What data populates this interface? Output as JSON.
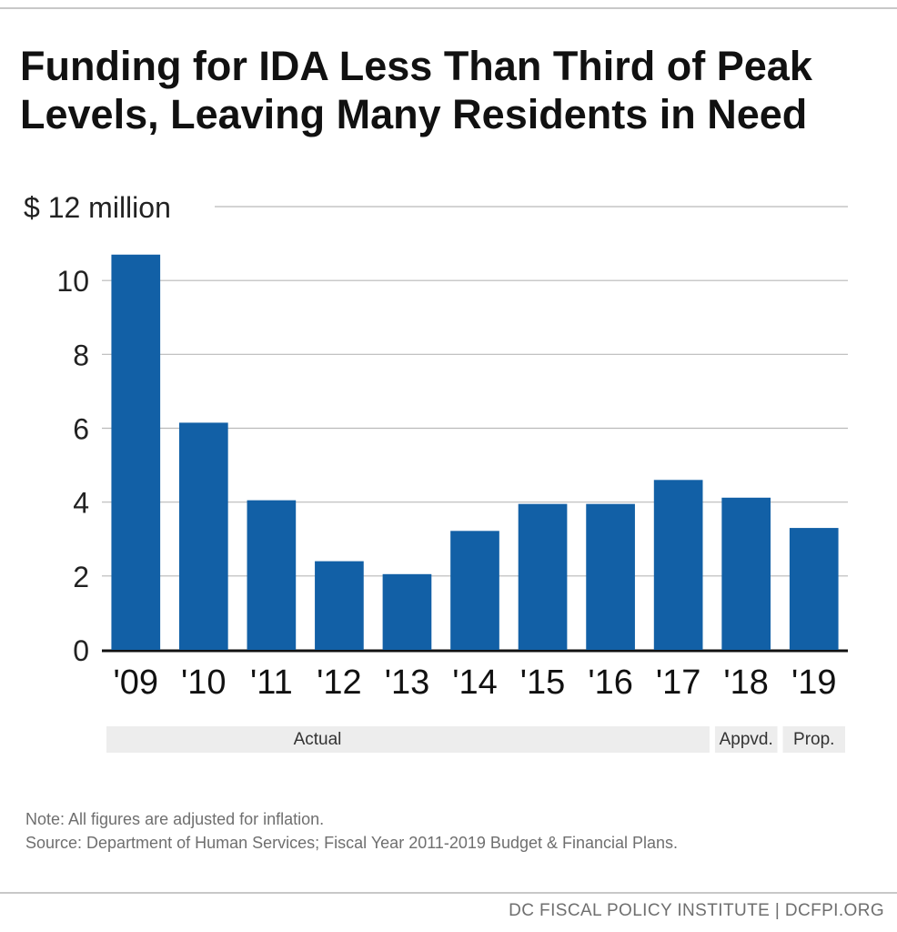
{
  "title_lines": [
    "Funding for IDA Less Than Third of Peak",
    "Levels, Leaving Many Residents in Need"
  ],
  "chart_data": {
    "type": "bar",
    "categories": [
      "'09",
      "'10",
      "'11",
      "'12",
      "'13",
      "'14",
      "'15",
      "'16",
      "'17",
      "'18",
      "'19"
    ],
    "values": [
      10.7,
      6.15,
      4.05,
      2.4,
      2.05,
      3.22,
      3.95,
      3.95,
      4.6,
      4.12,
      3.3
    ],
    "ylim": [
      0,
      12
    ],
    "yticks": [
      "0",
      "2",
      "4",
      "6",
      "8",
      "10",
      "$ 12 million"
    ],
    "grid": true,
    "bar_color": "#1260a6",
    "groups": [
      {
        "label": "Actual",
        "from": 0,
        "to": 8
      },
      {
        "label": "Appvd.",
        "from": 9,
        "to": 9
      },
      {
        "label": "Prop.",
        "from": 10,
        "to": 10
      }
    ]
  },
  "notes": {
    "note": "Note: All figures are adjusted for inflation.",
    "source": "Source: Department of Human Services; Fiscal Year 2011-2019 Budget & Financial Plans."
  },
  "footer": "DC FISCAL POLICY INSTITUTE | DCFPI.ORG"
}
